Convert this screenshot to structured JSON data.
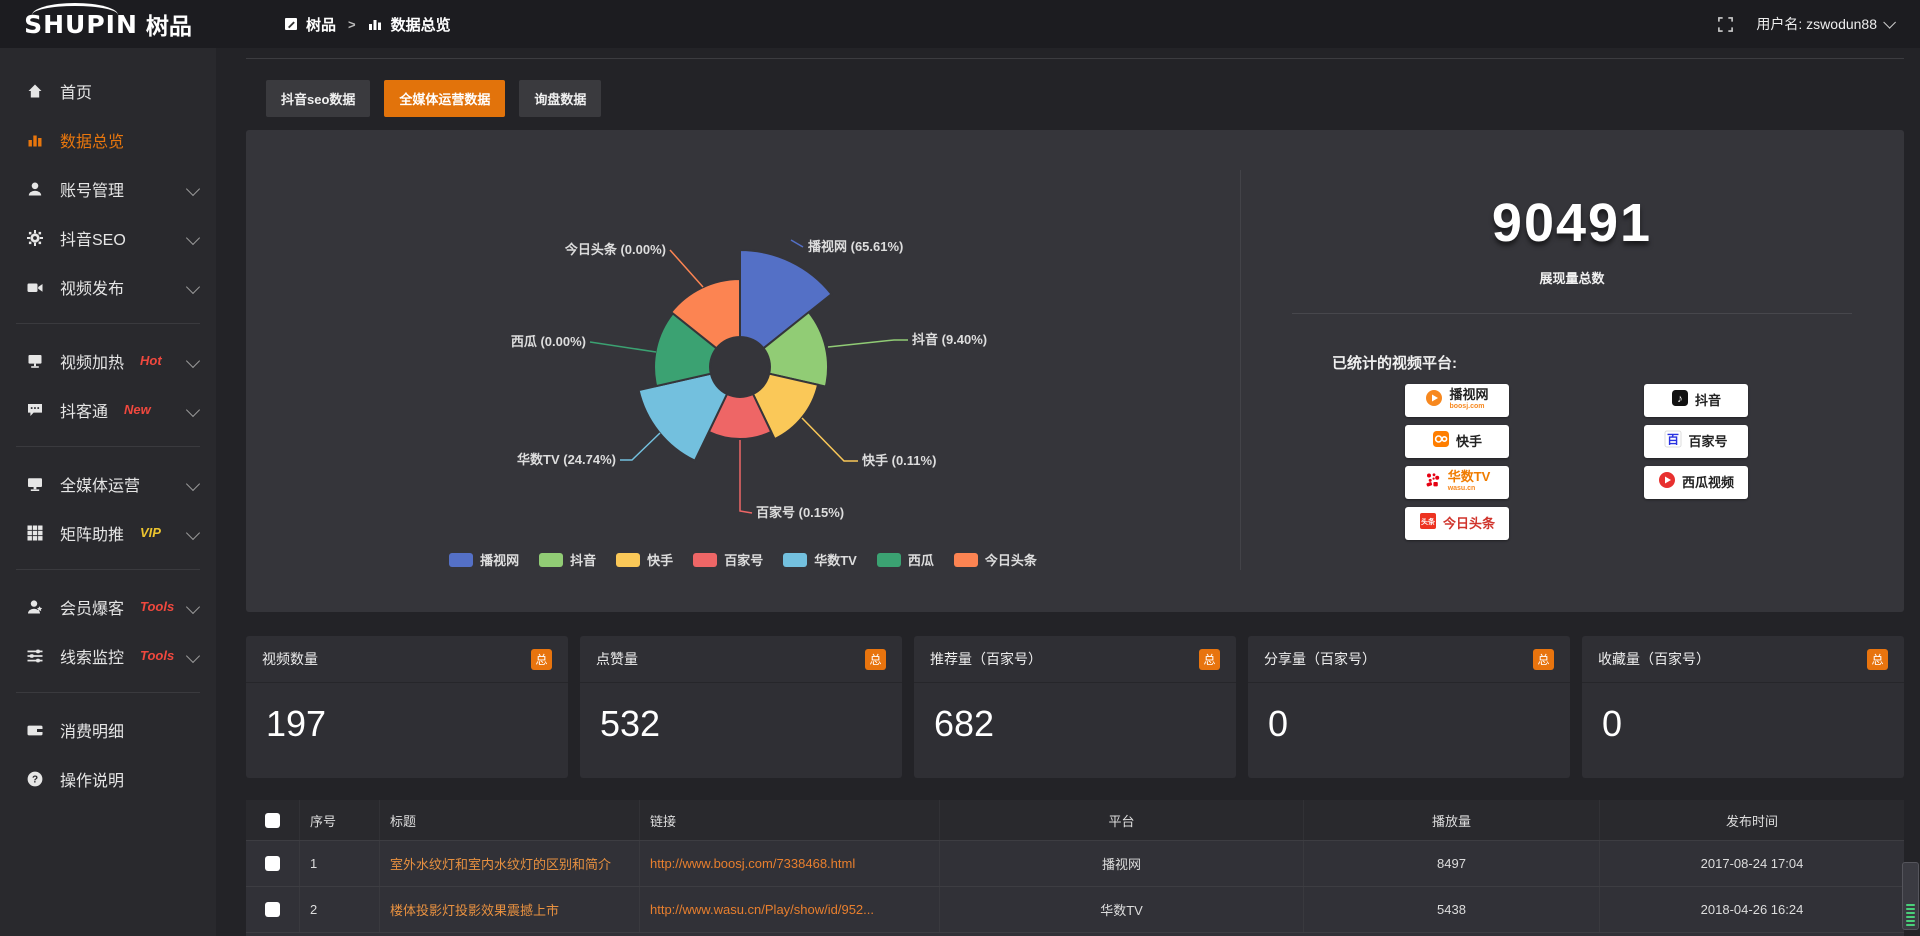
{
  "topbar": {
    "logo_primary": "SHUPIN",
    "logo_secondary": "树品",
    "breadcrumb_root": "树品",
    "breadcrumb_separator": ">",
    "breadcrumb_current": "数据总览",
    "username": "用户名: zswodun88"
  },
  "sidebar": {
    "items": [
      {
        "label": "首页",
        "icon": "home"
      },
      {
        "label": "数据总览",
        "icon": "chart-bars",
        "active": true
      },
      {
        "label": "账号管理",
        "icon": "user",
        "chevron": true
      },
      {
        "label": "抖音SEO",
        "icon": "gear",
        "chevron": true
      },
      {
        "label": "视频发布",
        "icon": "video-publish",
        "chevron": true,
        "divider_after": true
      },
      {
        "label": "视频加热",
        "icon": "screen-heat",
        "badge": "Hot",
        "badge_color": "#f0483e",
        "chevron": true
      },
      {
        "label": "抖客通",
        "icon": "chat",
        "badge": "New",
        "badge_color": "#f0483e",
        "chevron": true,
        "divider_after": true
      },
      {
        "label": "全媒体运营",
        "icon": "monitor",
        "chevron": true
      },
      {
        "label": "矩阵助推",
        "icon": "grid",
        "badge": "VIP",
        "badge_color": "#edc52f",
        "chevron": true,
        "divider_after": true
      },
      {
        "label": "会员爆客",
        "icon": "member",
        "badge": "Tools",
        "badge_color": "#f0483e",
        "chevron": true
      },
      {
        "label": "线索监控",
        "icon": "sliders",
        "badge": "Tools",
        "badge_color": "#f0483e",
        "chevron": true,
        "divider_after": true
      },
      {
        "label": "消费明细",
        "icon": "wallet"
      },
      {
        "label": "操作说明",
        "icon": "question"
      }
    ]
  },
  "tabs": [
    {
      "label": "抖音seo数据"
    },
    {
      "label": "全媒体运营数据",
      "active": true
    },
    {
      "label": "询盘数据"
    }
  ],
  "chart_data": {
    "type": "pie",
    "variant": "nightingale-rose",
    "labels": [
      "播视网",
      "抖音",
      "快手",
      "百家号",
      "华数TV",
      "西瓜",
      "今日头条"
    ],
    "values_percent": [
      65.61,
      9.4,
      0.11,
      0.15,
      24.74,
      0.0,
      0.0
    ],
    "colors": [
      "#5470c6",
      "#91cc75",
      "#fac858",
      "#ee6666",
      "#73c0de",
      "#3ba272",
      "#fc8452"
    ],
    "display_radii": [
      117,
      88,
      80,
      72,
      104,
      86,
      88
    ],
    "inner_radius": 30,
    "legend": [
      "播视网",
      "抖音",
      "快手",
      "百家号",
      "华数TV",
      "西瓜",
      "今日头条"
    ],
    "legend_position": "bottom"
  },
  "summary": {
    "total_value": "90491",
    "total_label": "展现量总数",
    "platforms_title": "已统计的视频平台:",
    "platforms_left": [
      {
        "name": "播视网",
        "sub": "boosj.com",
        "icon": "boosj-logo"
      },
      {
        "name": "快手",
        "icon": "kuaishou-logo"
      },
      {
        "name": "华数TV",
        "sub": "wasu.cn",
        "icon": "wasu-logo"
      },
      {
        "name": "今日头条",
        "icon": "toutiao-logo"
      }
    ],
    "platforms_right": [
      {
        "name": "抖音",
        "icon": "douyin-logo"
      },
      {
        "name": "百家号",
        "icon": "baijiahao-logo"
      },
      {
        "name": "西瓜视频",
        "icon": "xigua-logo"
      }
    ]
  },
  "stat_cards": [
    {
      "title": "视频数量",
      "badge": "总",
      "value": "197"
    },
    {
      "title": "点赞量",
      "badge": "总",
      "value": "532"
    },
    {
      "title": "推荐量（百家号）",
      "badge": "总",
      "value": "682"
    },
    {
      "title": "分享量（百家号）",
      "badge": "总",
      "value": "0"
    },
    {
      "title": "收藏量（百家号）",
      "badge": "总",
      "value": "0"
    }
  ],
  "table": {
    "columns": [
      "序号",
      "标题",
      "链接",
      "平台",
      "播放量",
      "发布时间"
    ],
    "rows": [
      {
        "index": "1",
        "title": "室外水纹灯和室内水纹灯的区别和简介",
        "link": "http://www.boosj.com/7338468.html",
        "platform": "播视网",
        "plays": "8497",
        "time": "2017-08-24 17:04"
      },
      {
        "index": "2",
        "title": "楼体投影灯投影效果震撼上市",
        "link": "http://www.wasu.cn/Play/show/id/952...",
        "platform": "华数TV",
        "plays": "5438",
        "time": "2018-04-26 16:24"
      }
    ]
  }
}
